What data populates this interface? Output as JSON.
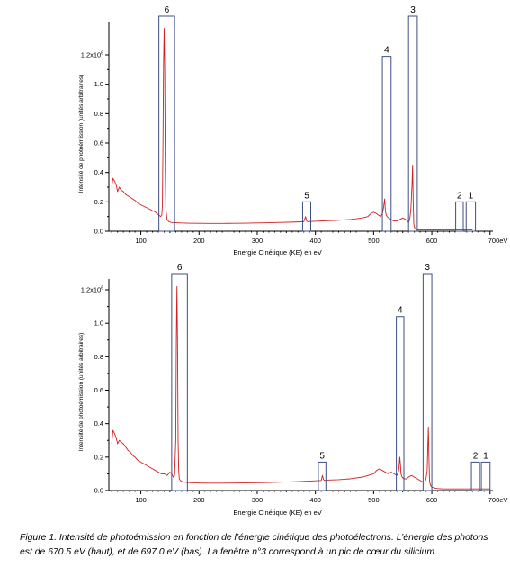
{
  "chart_data": [
    {
      "type": "line",
      "panel": "top",
      "xlabel": "Energie Cinétique (KE) en eV",
      "ylabel": "Intensité de photoémission (unités arbitraires)",
      "xlim": [
        45,
        705
      ],
      "ylim": [
        0,
        1.3
      ],
      "x_ticks": [
        100,
        200,
        300,
        400,
        500,
        600
      ],
      "x_tick_labels": [
        "100",
        "200",
        "300",
        "400",
        "500",
        "600"
      ],
      "x_end_label": "700eV",
      "y_ticks": [
        0.0,
        0.2,
        0.4,
        0.6,
        0.8,
        1.0,
        1.2
      ],
      "y_tick_labels": [
        "0.0",
        "0.2",
        "0.4",
        "0.6",
        "0.8",
        "1.0",
        "1.2x10⁶"
      ],
      "series": [
        {
          "x": [
            50,
            52,
            55,
            58,
            60,
            63,
            66,
            70,
            74,
            78,
            82,
            86,
            90,
            95,
            100,
            105,
            110,
            115,
            120,
            125,
            128,
            131,
            134,
            136,
            137,
            138,
            139,
            140,
            141,
            142,
            143,
            145,
            148,
            152,
            160,
            170,
            180,
            200,
            220,
            240,
            260,
            280,
            300,
            320,
            340,
            360,
            380,
            383,
            385,
            387,
            390,
            400,
            420,
            440,
            460,
            480,
            490,
            495,
            500,
            505,
            508,
            512,
            515,
            517,
            519,
            520,
            521,
            523,
            526,
            530,
            535,
            540,
            545,
            550,
            555,
            558,
            560,
            562,
            564,
            566,
            567,
            568,
            569,
            570,
            571,
            572,
            574,
            577,
            580,
            590,
            600,
            610,
            620,
            630,
            640,
            645,
            650,
            660,
            670
          ],
          "y": [
            0.3,
            0.36,
            0.34,
            0.31,
            0.27,
            0.3,
            0.28,
            0.27,
            0.25,
            0.24,
            0.23,
            0.22,
            0.21,
            0.19,
            0.18,
            0.17,
            0.16,
            0.15,
            0.14,
            0.13,
            0.12,
            0.11,
            0.1,
            0.11,
            0.17,
            0.6,
            1.15,
            1.38,
            1.1,
            0.4,
            0.15,
            0.08,
            0.065,
            0.06,
            0.058,
            0.056,
            0.055,
            0.054,
            0.053,
            0.053,
            0.054,
            0.055,
            0.056,
            0.058,
            0.06,
            0.062,
            0.065,
            0.1,
            0.07,
            0.065,
            0.066,
            0.068,
            0.072,
            0.075,
            0.08,
            0.09,
            0.1,
            0.12,
            0.13,
            0.12,
            0.11,
            0.1,
            0.12,
            0.16,
            0.22,
            0.15,
            0.12,
            0.1,
            0.09,
            0.08,
            0.07,
            0.07,
            0.08,
            0.09,
            0.08,
            0.07,
            0.06,
            0.08,
            0.15,
            0.32,
            0.45,
            0.2,
            0.05,
            0.03,
            0.02,
            0.015,
            0.012,
            0.01,
            0.01,
            0.01,
            0.01,
            0.01,
            0.01,
            0.01,
            0.01,
            0.01,
            0.01,
            0.01,
            0.01
          ]
        }
      ],
      "windows": [
        {
          "label": "6",
          "x": [
            131,
            158
          ],
          "ytop": 1.48
        },
        {
          "label": "5",
          "x": [
            378,
            392
          ],
          "ytop": 0.2
        },
        {
          "label": "4",
          "x": [
            515,
            530
          ],
          "ytop": 1.19
        },
        {
          "label": "3",
          "x": [
            560,
            575
          ],
          "ytop": 1.48
        },
        {
          "label": "2",
          "x": [
            641,
            654
          ],
          "ytop": 0.2
        },
        {
          "label": "1",
          "x": [
            659,
            675
          ],
          "ytop": 0.2
        }
      ]
    },
    {
      "type": "line",
      "panel": "bottom",
      "xlabel": "Energie Cinétique (KE) en eV",
      "ylabel": "Intensité de photoémission (unités arbitraires)",
      "xlim": [
        45,
        705
      ],
      "ylim": [
        0,
        1.3
      ],
      "x_ticks": [
        100,
        200,
        300,
        400,
        500,
        600
      ],
      "x_tick_labels": [
        "100",
        "200",
        "300",
        "400",
        "500",
        "600"
      ],
      "x_end_label": "700eV",
      "y_ticks": [
        0.0,
        0.2,
        0.4,
        0.6,
        0.8,
        1.0,
        1.2
      ],
      "y_tick_labels": [
        "0.0",
        "0.2",
        "0.4",
        "0.6",
        "0.8",
        "1.0",
        "1.2x10⁶"
      ],
      "series": [
        {
          "x": [
            50,
            52,
            55,
            58,
            60,
            63,
            66,
            70,
            74,
            78,
            82,
            86,
            90,
            95,
            100,
            105,
            110,
            115,
            120,
            125,
            130,
            135,
            140,
            145,
            150,
            153,
            156,
            158,
            160,
            161,
            162,
            163,
            164,
            165,
            166,
            168,
            170,
            175,
            180,
            190,
            200,
            220,
            240,
            260,
            280,
            300,
            320,
            340,
            360,
            380,
            400,
            410,
            412,
            414,
            416,
            420,
            440,
            460,
            480,
            500,
            505,
            510,
            515,
            520,
            525,
            530,
            535,
            540,
            543,
            545,
            546,
            547,
            549,
            552,
            556,
            560,
            565,
            570,
            575,
            580,
            585,
            588,
            590,
            592,
            594,
            595,
            596,
            597,
            598,
            600,
            605,
            610,
            620,
            640,
            660,
            680,
            690,
            700
          ],
          "y": [
            0.28,
            0.36,
            0.34,
            0.31,
            0.28,
            0.3,
            0.29,
            0.28,
            0.26,
            0.24,
            0.23,
            0.21,
            0.2,
            0.18,
            0.17,
            0.16,
            0.15,
            0.14,
            0.13,
            0.12,
            0.11,
            0.1,
            0.1,
            0.09,
            0.11,
            0.1,
            0.08,
            0.09,
            0.3,
            0.9,
            1.22,
            0.9,
            0.3,
            0.12,
            0.07,
            0.06,
            0.055,
            0.05,
            0.048,
            0.046,
            0.045,
            0.044,
            0.044,
            0.045,
            0.046,
            0.047,
            0.048,
            0.05,
            0.052,
            0.055,
            0.058,
            0.06,
            0.09,
            0.065,
            0.06,
            0.062,
            0.065,
            0.07,
            0.08,
            0.1,
            0.12,
            0.13,
            0.12,
            0.11,
            0.1,
            0.11,
            0.1,
            0.09,
            0.12,
            0.2,
            0.16,
            0.1,
            0.08,
            0.07,
            0.07,
            0.08,
            0.09,
            0.08,
            0.07,
            0.06,
            0.05,
            0.05,
            0.07,
            0.12,
            0.38,
            0.2,
            0.06,
            0.04,
            0.03,
            0.02,
            0.015,
            0.012,
            0.01,
            0.01,
            0.01,
            0.01,
            0.01,
            0.01
          ]
        }
      ],
      "windows": [
        {
          "label": "6",
          "x": [
            153,
            180
          ],
          "ytop": 1.3
        },
        {
          "label": "5",
          "x": [
            405,
            418
          ],
          "ytop": 0.17
        },
        {
          "label": "4",
          "x": [
            539,
            552
          ],
          "ytop": 1.04
        },
        {
          "label": "3",
          "x": [
            585,
            600
          ],
          "ytop": 1.3
        },
        {
          "label": "2",
          "x": [
            668,
            682
          ],
          "ytop": 0.17
        },
        {
          "label": "1",
          "x": [
            685,
            700
          ],
          "ytop": 0.17
        }
      ]
    }
  ],
  "caption": "Figure 1. Intensité de photoémission en fonction de l’énergie cinétique des photoélectrons. L’énergie des photons est de 670.5 eV (haut), et de 697.0 eV (bas). La fenêtre n°3 correspond à un pic de cœur du silicium.",
  "colors": {
    "spectrum": "#d21f1f",
    "window_frame": "#3d4f86",
    "axis": "#000000"
  }
}
